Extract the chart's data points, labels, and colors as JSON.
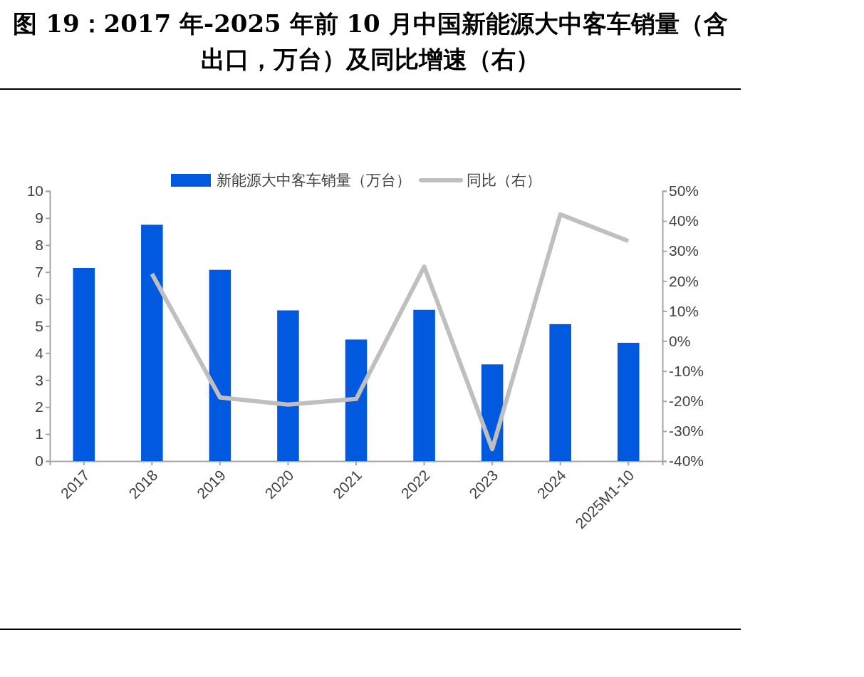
{
  "chart_data": {
    "type": "bar",
    "title": "图 19：2017 年-2025 年前 10 月中国新能源大中客车销量（含出口，万台）及同比增速（右）",
    "categories": [
      "2017",
      "2018",
      "2019",
      "2020",
      "2021",
      "2022",
      "2023",
      "2024",
      "2025M1-10"
    ],
    "series": [
      {
        "name": "新能源大中客车销量（万台）",
        "color": "#0059de",
        "values": [
          7.15,
          8.75,
          7.08,
          5.58,
          4.5,
          5.6,
          3.58,
          5.07,
          4.38
        ]
      },
      {
        "name": "同比（右）",
        "type": "line",
        "axis": "y2",
        "color": "#bfbfbf",
        "values": [
          null,
          22.4,
          -18.8,
          -21.2,
          -19.3,
          24.8,
          -36,
          42.2,
          33.3
        ]
      }
    ],
    "ylim": [
      0,
      10
    ],
    "yticks": [
      0,
      1,
      2,
      3,
      4,
      5,
      6,
      7,
      8,
      9,
      10
    ],
    "y2lim": [
      -40,
      50
    ],
    "y2ticks": [
      {
        "value": -40,
        "label": "-40%"
      },
      {
        "value": -30,
        "label": "-30%"
      },
      {
        "value": -20,
        "label": "-20%"
      },
      {
        "value": -10,
        "label": "-10%"
      },
      {
        "value": 0,
        "label": "0%"
      },
      {
        "value": 10,
        "label": "10%"
      },
      {
        "value": 20,
        "label": "20%"
      },
      {
        "value": 30,
        "label": "30%"
      },
      {
        "value": 40,
        "label": "40%"
      },
      {
        "value": 50,
        "label": "50%"
      }
    ],
    "grid": false,
    "legend": "top",
    "marker": "none",
    "line_style": "solid"
  }
}
